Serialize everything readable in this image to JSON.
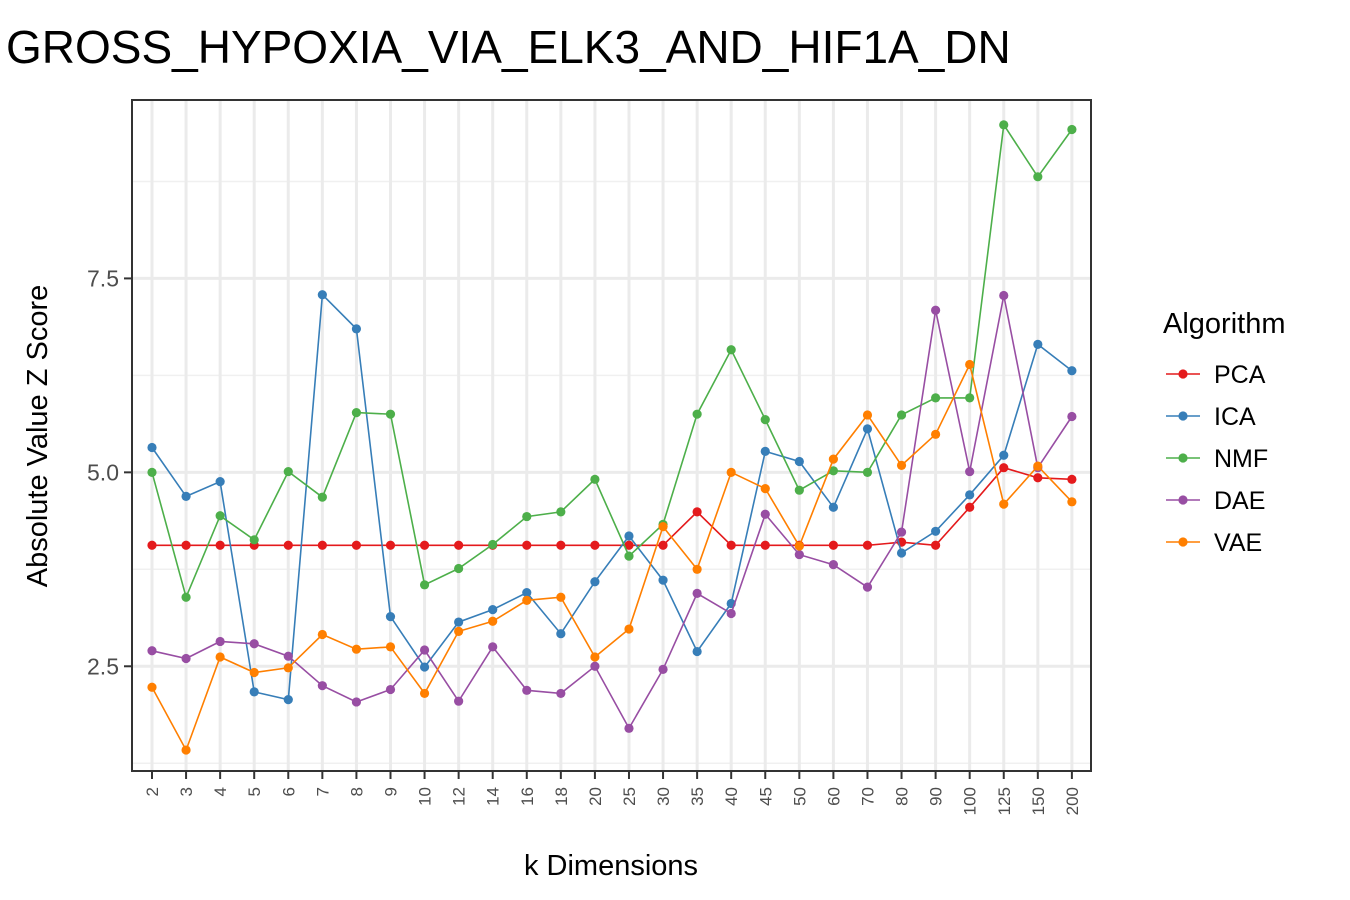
{
  "chart_data": {
    "type": "line",
    "title": "GROSS_HYPOXIA_VIA_ELK3_AND_HIF1A_DN",
    "xlabel": "k Dimensions",
    "ylabel": "Absolute Value Z Score",
    "categories": [
      "2",
      "3",
      "4",
      "5",
      "6",
      "7",
      "8",
      "9",
      "10",
      "12",
      "14",
      "16",
      "18",
      "20",
      "25",
      "30",
      "35",
      "40",
      "45",
      "50",
      "60",
      "70",
      "80",
      "90",
      "100",
      "125",
      "150",
      "200"
    ],
    "yticks": [
      2.5,
      5.0,
      7.5
    ],
    "ytick_labels": [
      "2.5",
      "5.0",
      "7.5"
    ],
    "ylim": [
      1.15,
      9.8
    ],
    "grid": true,
    "legend": {
      "title": "Algorithm",
      "position": "right"
    },
    "series": [
      {
        "name": "PCA",
        "color": "#E41A1C",
        "values": [
          4.06,
          4.06,
          4.06,
          4.06,
          4.06,
          4.06,
          4.06,
          4.06,
          4.06,
          4.06,
          4.06,
          4.06,
          4.06,
          4.06,
          4.06,
          4.06,
          4.49,
          4.06,
          4.06,
          4.06,
          4.06,
          4.06,
          4.1,
          4.06,
          4.55,
          5.06,
          4.93,
          4.91
        ]
      },
      {
        "name": "ICA",
        "color": "#377EB8",
        "values": [
          5.32,
          4.69,
          4.88,
          2.17,
          2.07,
          7.29,
          6.85,
          3.14,
          2.49,
          3.07,
          3.23,
          3.45,
          2.92,
          3.59,
          4.18,
          3.61,
          2.69,
          3.31,
          5.27,
          5.14,
          4.55,
          5.56,
          3.96,
          4.24,
          4.71,
          5.22,
          6.65,
          6.31
        ]
      },
      {
        "name": "NMF",
        "color": "#4DAF4A",
        "values": [
          5.0,
          3.39,
          4.44,
          4.13,
          5.01,
          4.68,
          5.77,
          5.75,
          3.55,
          3.76,
          4.07,
          4.43,
          4.49,
          4.91,
          3.92,
          4.33,
          5.75,
          6.58,
          5.68,
          4.77,
          5.02,
          5.0,
          5.74,
          5.96,
          5.96,
          9.48,
          8.81,
          9.42
        ]
      },
      {
        "name": "DAE",
        "color": "#984EA3",
        "values": [
          2.7,
          2.6,
          2.82,
          2.79,
          2.63,
          2.25,
          2.04,
          2.2,
          2.71,
          2.05,
          2.75,
          2.19,
          2.15,
          2.5,
          1.7,
          2.46,
          3.44,
          3.18,
          4.46,
          3.94,
          3.81,
          3.52,
          4.23,
          7.09,
          5.01,
          7.28,
          5.06,
          5.72
        ]
      },
      {
        "name": "VAE",
        "color": "#FF7F00",
        "values": [
          2.23,
          1.42,
          2.62,
          2.42,
          2.48,
          2.91,
          2.72,
          2.75,
          2.15,
          2.95,
          3.08,
          3.35,
          3.39,
          2.62,
          2.98,
          4.3,
          3.75,
          5.0,
          4.79,
          4.05,
          5.17,
          5.74,
          5.09,
          5.49,
          6.39,
          4.59,
          5.08,
          4.62
        ]
      }
    ]
  }
}
